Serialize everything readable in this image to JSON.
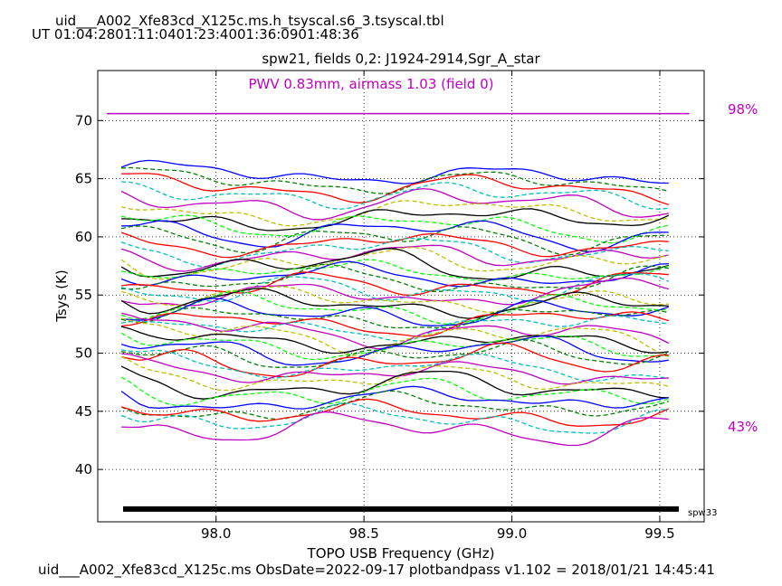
{
  "header": {
    "file_title": "uid___A002_Xfe83cd_X125c.ms.h_tsyscal.s6_3.tsyscal.tbl",
    "ut_label": "UT 01:04:2801:11:0401:23:4001:36:0901:48:36",
    "subtitle": "spw21,  fields 0,2: J1924-2914,Sgr_A_star"
  },
  "footer": {
    "text": "uid___A002_Xfe83cd_X125c.ms  ObsDate=2022-09-17   plotbandpass v1.102 = 2018/01/21 14:45:41"
  },
  "chart_data": {
    "type": "line",
    "xlabel": "TOPO USB Frequency (GHz)",
    "ylabel": "Tsys (K)",
    "xlim": [
      97.6,
      99.65
    ],
    "ylim": [
      35.5,
      74.3
    ],
    "xticks": [
      98.0,
      98.5,
      99.0,
      99.5
    ],
    "xtick_labels": [
      "98.0",
      "98.5",
      "99.0",
      "99.5"
    ],
    "yticks": [
      40,
      45,
      50,
      55,
      60,
      65,
      70
    ],
    "ytick_labels": [
      "40",
      "45",
      "50",
      "55",
      "60",
      "65",
      "70"
    ],
    "grid": true,
    "band_range": [
      97.68,
      99.53
    ],
    "series_colors": [
      "#0000ff",
      "#008000",
      "#ff0000",
      "#00bfbf",
      "#bf00bf",
      "#bfbf00",
      "#000000",
      "#00ff00"
    ],
    "series_top": [
      65.3,
      64.7,
      64.2,
      63.6,
      62.9,
      62.2,
      61.6,
      61.0,
      60.4,
      59.9,
      59.4,
      58.9,
      58.4,
      57.9,
      57.5,
      57.0,
      56.6,
      56.2,
      55.8,
      55.4,
      55.0,
      54.6,
      54.2,
      53.8,
      53.4,
      53.0,
      52.6,
      52.2,
      51.8,
      51.4,
      51.0,
      50.6,
      50.2,
      49.8,
      49.3,
      48.8,
      48.3,
      47.8,
      47.2,
      46.6,
      46.0,
      45.4,
      44.8,
      44.3,
      43.5
    ],
    "pwv_line": {
      "y": 70.6,
      "x_range": [
        97.63,
        99.6
      ],
      "color": "#c000c0"
    },
    "band_bar": {
      "y": 36.6,
      "color": "#000000"
    },
    "annotations": {
      "pwv": "PWV 0.83mm, airmass 1.03 (field 0)",
      "pct_top": "98%",
      "pct_bottom": "43%",
      "spw": "spw33"
    }
  }
}
